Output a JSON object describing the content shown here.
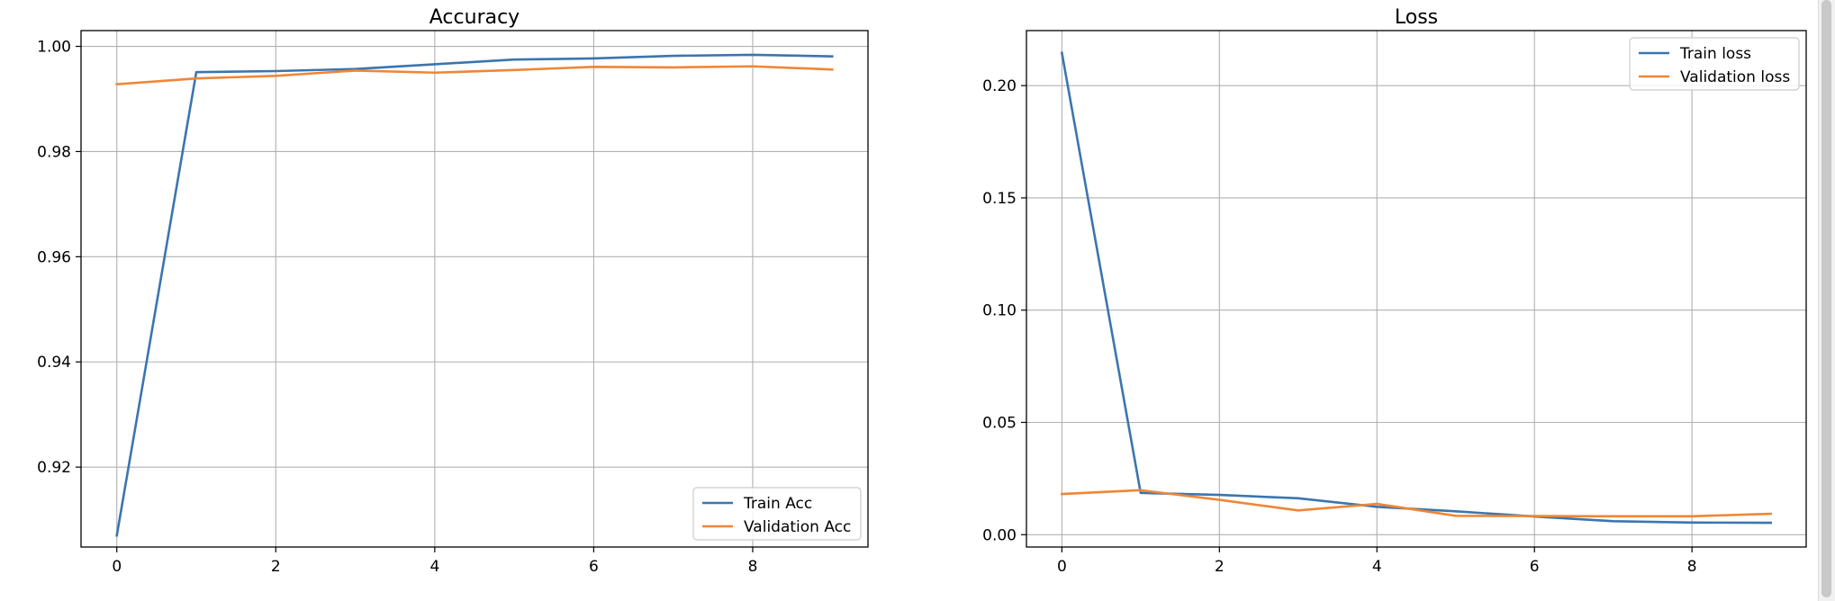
{
  "chart_data": [
    {
      "type": "line",
      "title": "Accuracy",
      "xlabel": "",
      "ylabel": "",
      "x": [
        0,
        1,
        2,
        3,
        4,
        5,
        6,
        7,
        8,
        9
      ],
      "xticks": [
        0,
        2,
        4,
        6,
        8
      ],
      "xtick_labels": [
        "0",
        "2",
        "4",
        "6",
        "8"
      ],
      "yticks": [
        0.92,
        0.94,
        0.96,
        0.98,
        1.0
      ],
      "ytick_labels": [
        "0.92",
        "0.94",
        "0.96",
        "0.98",
        "1.00"
      ],
      "xlim": [
        -0.45,
        9.45
      ],
      "ylim": [
        0.9048,
        1.003
      ],
      "grid": true,
      "legend_position": "lower-right",
      "series": [
        {
          "name": "Train Acc",
          "color": "#3b75af",
          "values": [
            0.907,
            0.9951,
            0.9953,
            0.9957,
            0.9966,
            0.9975,
            0.9977,
            0.9982,
            0.9984,
            0.9981
          ]
        },
        {
          "name": "Validation Acc",
          "color": "#ef8636",
          "values": [
            0.9928,
            0.9939,
            0.9944,
            0.9954,
            0.995,
            0.9955,
            0.9961,
            0.996,
            0.9962,
            0.9956
          ]
        }
      ]
    },
    {
      "type": "line",
      "title": "Loss",
      "xlabel": "",
      "ylabel": "",
      "x": [
        0,
        1,
        2,
        3,
        4,
        5,
        6,
        7,
        8,
        9
      ],
      "xticks": [
        0,
        2,
        4,
        6,
        8
      ],
      "xtick_labels": [
        "0",
        "2",
        "4",
        "6",
        "8"
      ],
      "yticks": [
        0.0,
        0.05,
        0.1,
        0.15,
        0.2
      ],
      "ytick_labels": [
        "0.00",
        "0.05",
        "0.10",
        "0.15",
        "0.20"
      ],
      "xlim": [
        -0.45,
        9.45
      ],
      "ylim": [
        -0.0055,
        0.2245
      ],
      "grid": true,
      "legend_position": "upper-right",
      "series": [
        {
          "name": "Train loss",
          "color": "#3b75af",
          "values": [
            0.2146,
            0.0186,
            0.0177,
            0.0162,
            0.0124,
            0.0104,
            0.0081,
            0.006,
            0.0054,
            0.0053
          ]
        },
        {
          "name": "Validation loss",
          "color": "#ef8636",
          "values": [
            0.0181,
            0.0198,
            0.0155,
            0.0108,
            0.0137,
            0.0084,
            0.0083,
            0.0082,
            0.0082,
            0.0093
          ]
        }
      ]
    }
  ]
}
